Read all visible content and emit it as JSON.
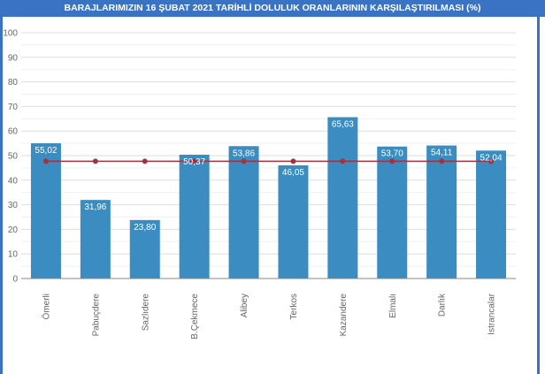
{
  "chart_data": {
    "type": "bar",
    "title": "BARAJLARIMIZIN 16 ŞUBAT 2021 TARİHLİ DOLULUK ORANLARININ KARŞILAŞTIRILMASI (%)",
    "categories": [
      "Ömerli",
      "Pabuçdere",
      "Sazlıdere",
      "B.Çekmece",
      "Alibey",
      "Terkos",
      "Kazandere",
      "Elmalı",
      "Darlık",
      "Istrancalar"
    ],
    "series": [
      {
        "type": "bar",
        "values": [
          55.02,
          31.96,
          23.8,
          50.37,
          53.86,
          46.05,
          65.63,
          53.7,
          54.11,
          52.04
        ],
        "labels": [
          "55,02",
          "31,96",
          "23,80",
          "50,37",
          "53,86",
          "46,05",
          "65,63",
          "53,70",
          "54,11",
          "52,04"
        ],
        "color": "#3a8cc1"
      },
      {
        "type": "line",
        "values": [
          47.7,
          47.7,
          47.7,
          47.7,
          47.7,
          47.7,
          47.7,
          47.7,
          47.7,
          47.7
        ],
        "color": "#a0333f"
      }
    ],
    "ylim": [
      0,
      100
    ],
    "yticks": [
      "0",
      "10",
      "20",
      "30",
      "40",
      "50",
      "60",
      "70",
      "80",
      "90",
      "100"
    ],
    "grid": true,
    "xlabel": "",
    "ylabel": ""
  }
}
